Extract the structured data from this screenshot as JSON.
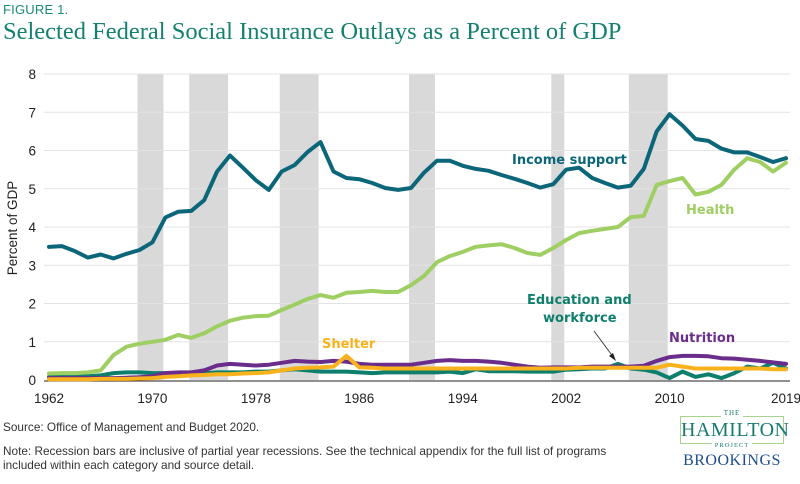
{
  "figure_label": "FIGURE 1.",
  "title": "Selected Federal Social Insurance Outlays as a Percent of GDP",
  "source": "Source:  Office of Management and Budget 2020.",
  "note": "Note: Recession bars are inclusive of partial year recessions. See the technical appendix for the full list of programs included within each category and source detail.",
  "logo": {
    "the": "THE",
    "hamilton": "HAMILTON",
    "project": "PROJECT",
    "brookings": "BROOKINGS"
  },
  "colors": {
    "income_support": "#0b6679",
    "health": "#9fce63",
    "education": "#0e7f6c",
    "nutrition": "#6b2d8c",
    "shelter": "#f9b21b",
    "recession": "#d9d9d9",
    "grid": "#e3e3e3"
  },
  "chart_data": {
    "type": "line",
    "title": "Selected Federal Social Insurance Outlays as a Percent of GDP",
    "xlabel": "",
    "ylabel": "Percent of GDP",
    "xlim": [
      1962,
      2019
    ],
    "ylim": [
      0,
      8
    ],
    "grid": true,
    "x_ticks": [
      1962,
      1970,
      1978,
      1986,
      1994,
      2002,
      2010,
      2019
    ],
    "y_ticks": [
      0,
      1,
      2,
      3,
      4,
      5,
      6,
      7,
      8
    ],
    "recessions": [
      [
        1969,
        1970
      ],
      [
        1973,
        1975
      ],
      [
        1980,
        1982
      ],
      [
        1990,
        1991
      ],
      [
        2001,
        2001
      ],
      [
        2007,
        2009
      ]
    ],
    "x": [
      1962,
      1963,
      1964,
      1965,
      1966,
      1967,
      1968,
      1969,
      1970,
      1971,
      1972,
      1973,
      1974,
      1975,
      1976,
      1977,
      1978,
      1979,
      1980,
      1981,
      1982,
      1983,
      1984,
      1985,
      1986,
      1987,
      1988,
      1989,
      1990,
      1991,
      1992,
      1993,
      1994,
      1995,
      1996,
      1997,
      1998,
      1999,
      2000,
      2001,
      2002,
      2003,
      2004,
      2005,
      2006,
      2007,
      2008,
      2009,
      2010,
      2011,
      2012,
      2013,
      2014,
      2015,
      2016,
      2017,
      2018,
      2019
    ],
    "series": [
      {
        "name": "Income support",
        "key": "income_support",
        "values": [
          3.48,
          3.5,
          3.37,
          3.2,
          3.28,
          3.18,
          3.3,
          3.4,
          3.6,
          4.25,
          4.4,
          4.42,
          4.7,
          5.45,
          5.87,
          5.55,
          5.22,
          4.97,
          5.45,
          5.62,
          5.96,
          6.22,
          5.45,
          5.28,
          5.25,
          5.15,
          5.02,
          4.97,
          5.02,
          5.42,
          5.73,
          5.73,
          5.6,
          5.52,
          5.47,
          5.36,
          5.26,
          5.15,
          5.03,
          5.12,
          5.5,
          5.55,
          5.28,
          5.15,
          5.03,
          5.08,
          5.52,
          6.5,
          6.95,
          6.65,
          6.3,
          6.25,
          6.05,
          5.95,
          5.95,
          5.83,
          5.7,
          5.8
        ]
      },
      {
        "name": "Health",
        "key": "health",
        "values": [
          0.17,
          0.18,
          0.18,
          0.2,
          0.25,
          0.65,
          0.87,
          0.95,
          1.0,
          1.05,
          1.18,
          1.1,
          1.22,
          1.4,
          1.55,
          1.63,
          1.67,
          1.68,
          1.83,
          1.97,
          2.12,
          2.22,
          2.15,
          2.28,
          2.3,
          2.33,
          2.3,
          2.3,
          2.48,
          2.72,
          3.08,
          3.24,
          3.35,
          3.48,
          3.52,
          3.55,
          3.45,
          3.32,
          3.27,
          3.45,
          3.66,
          3.84,
          3.9,
          3.95,
          4.0,
          4.26,
          4.29,
          5.1,
          5.2,
          5.28,
          4.85,
          4.92,
          5.1,
          5.5,
          5.8,
          5.7,
          5.45,
          5.68
        ]
      },
      {
        "name": "Education and workforce",
        "key": "education",
        "values": [
          0.08,
          0.08,
          0.08,
          0.1,
          0.12,
          0.18,
          0.2,
          0.2,
          0.18,
          0.18,
          0.18,
          0.18,
          0.18,
          0.2,
          0.2,
          0.2,
          0.22,
          0.22,
          0.25,
          0.28,
          0.25,
          0.22,
          0.22,
          0.22,
          0.2,
          0.18,
          0.2,
          0.2,
          0.2,
          0.2,
          0.2,
          0.22,
          0.18,
          0.28,
          0.23,
          0.23,
          0.23,
          0.22,
          0.22,
          0.22,
          0.27,
          0.28,
          0.3,
          0.3,
          0.42,
          0.3,
          0.27,
          0.2,
          0.05,
          0.22,
          0.08,
          0.15,
          0.05,
          0.18,
          0.35,
          0.3,
          0.45,
          0.3
        ]
      },
      {
        "name": "Nutrition",
        "key": "nutrition",
        "values": [
          0.05,
          0.05,
          0.05,
          0.05,
          0.05,
          0.05,
          0.06,
          0.07,
          0.1,
          0.18,
          0.2,
          0.2,
          0.25,
          0.38,
          0.42,
          0.4,
          0.38,
          0.4,
          0.45,
          0.5,
          0.48,
          0.47,
          0.5,
          0.48,
          0.42,
          0.4,
          0.4,
          0.4,
          0.4,
          0.45,
          0.5,
          0.52,
          0.5,
          0.5,
          0.48,
          0.45,
          0.4,
          0.35,
          0.32,
          0.33,
          0.33,
          0.33,
          0.35,
          0.35,
          0.35,
          0.35,
          0.37,
          0.5,
          0.6,
          0.63,
          0.63,
          0.62,
          0.57,
          0.56,
          0.53,
          0.5,
          0.46,
          0.42
        ]
      },
      {
        "name": "Shelter",
        "key": "shelter",
        "values": [
          0.02,
          0.02,
          0.02,
          0.02,
          0.03,
          0.03,
          0.03,
          0.04,
          0.05,
          0.08,
          0.1,
          0.12,
          0.13,
          0.15,
          0.15,
          0.17,
          0.18,
          0.2,
          0.25,
          0.3,
          0.32,
          0.33,
          0.35,
          0.63,
          0.33,
          0.32,
          0.3,
          0.3,
          0.3,
          0.3,
          0.3,
          0.3,
          0.3,
          0.3,
          0.3,
          0.3,
          0.3,
          0.3,
          0.3,
          0.3,
          0.3,
          0.32,
          0.32,
          0.32,
          0.32,
          0.32,
          0.32,
          0.32,
          0.4,
          0.35,
          0.3,
          0.3,
          0.3,
          0.3,
          0.3,
          0.3,
          0.28,
          0.28
        ]
      }
    ],
    "annotations": [
      {
        "text": "Income support",
        "series": "income_support"
      },
      {
        "text": "Health",
        "series": "health"
      },
      {
        "text": "Education and",
        "series": "education"
      },
      {
        "text": "workforce",
        "series": "education"
      },
      {
        "text": "Nutrition",
        "series": "nutrition"
      },
      {
        "text": "Shelter",
        "series": "shelter"
      }
    ],
    "legend": "inline-labels"
  }
}
